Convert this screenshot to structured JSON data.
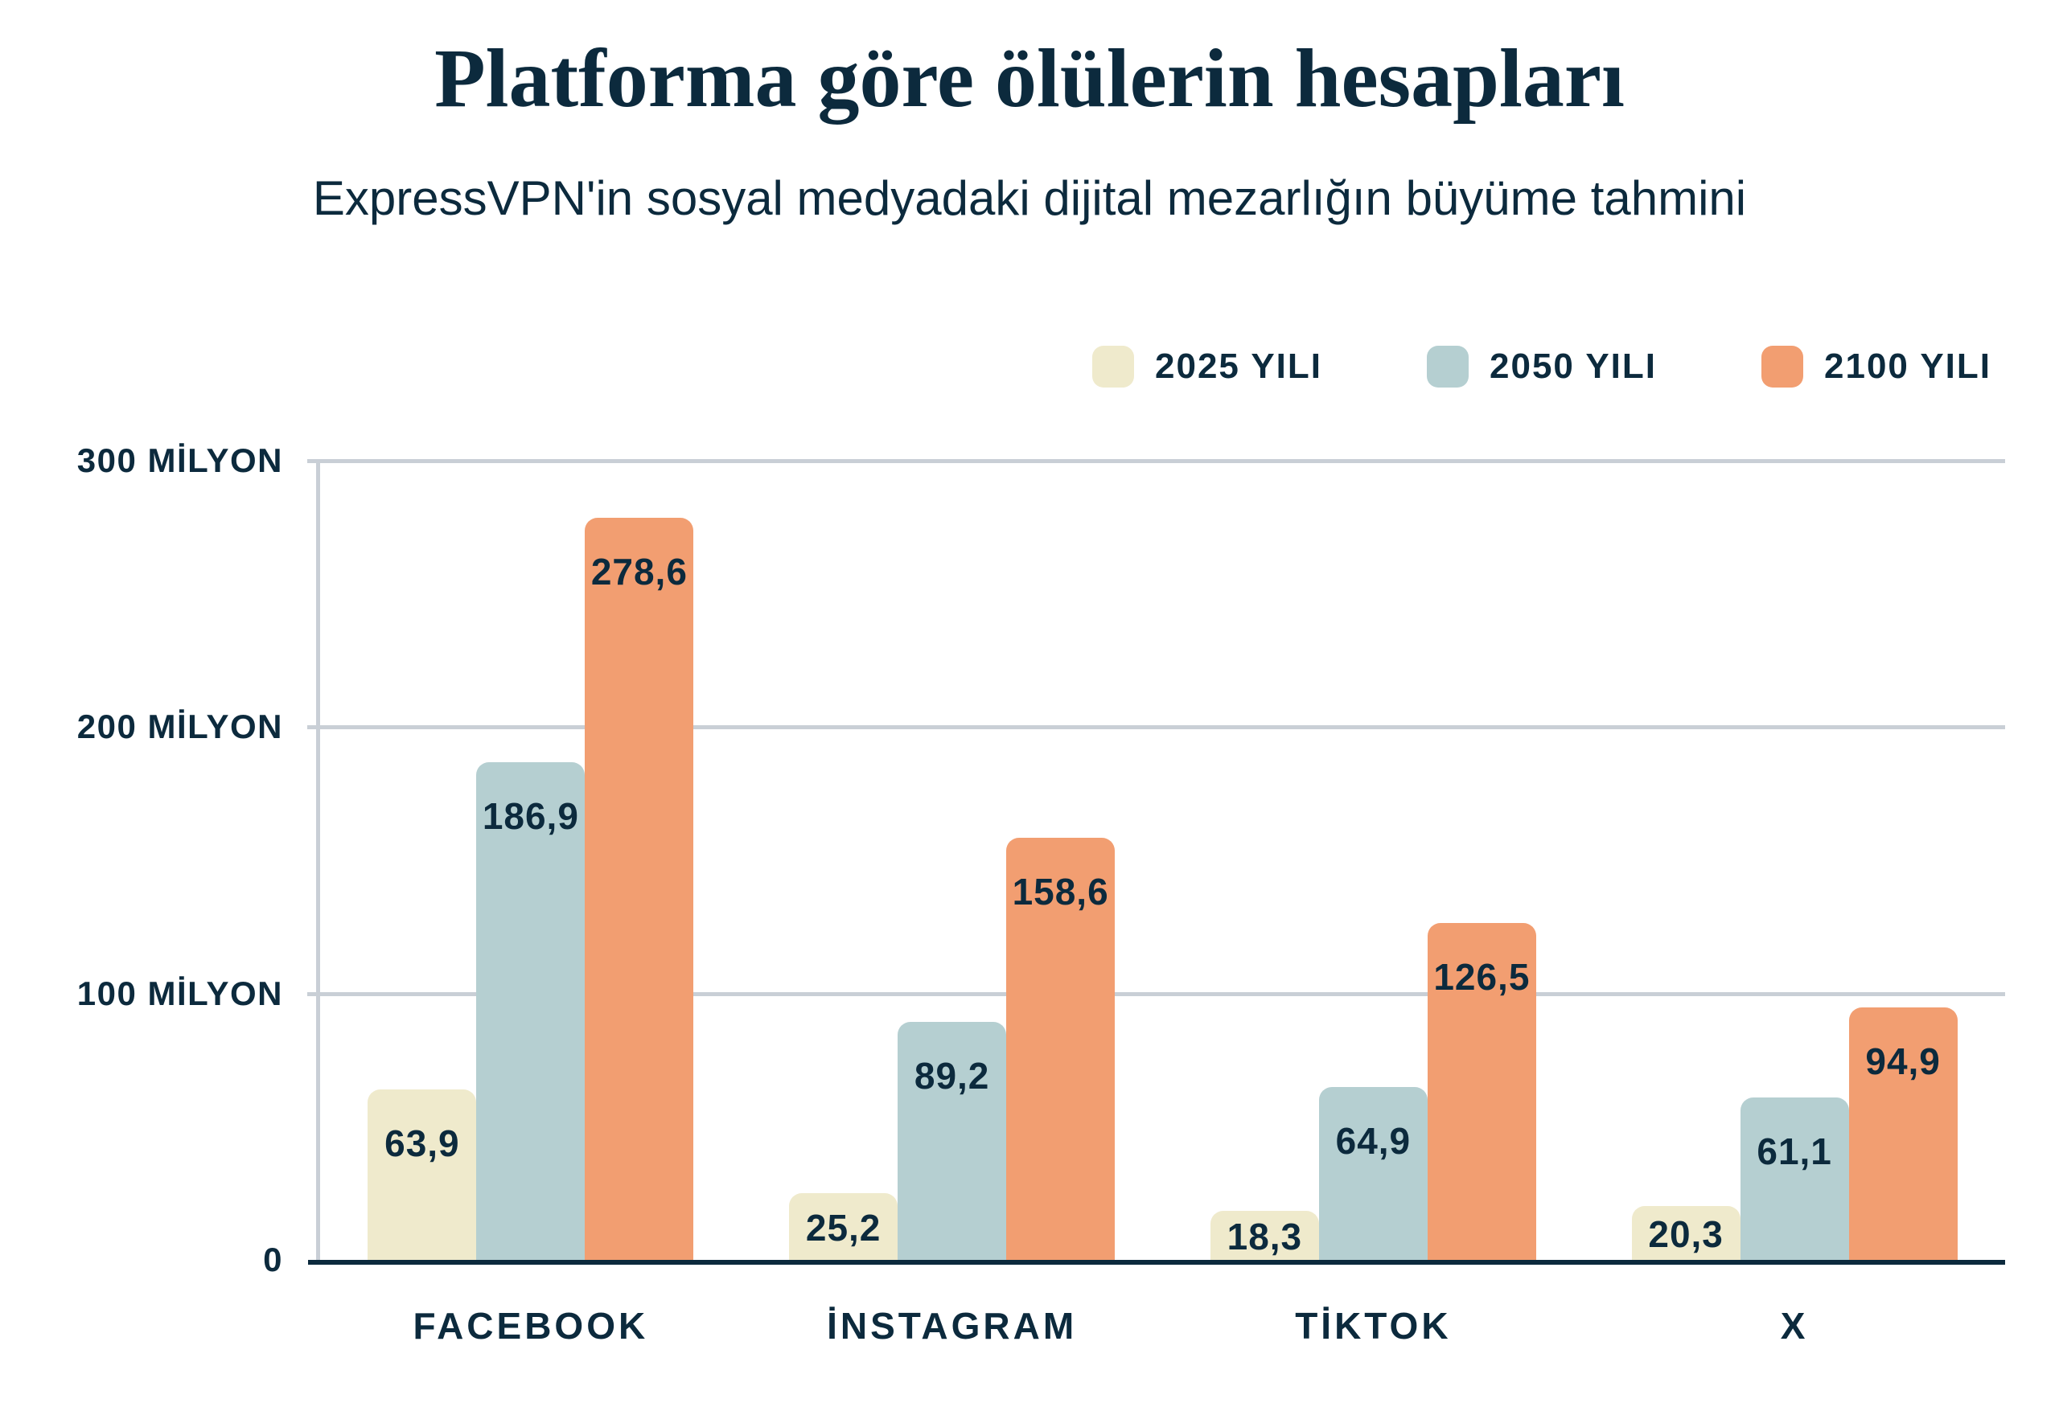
{
  "header": {
    "title": "Platforma göre ölülerin hesapları",
    "subtitle": "ExpressVPN'in sosyal medyadaki dijital mezarlığın büyüme tahmini"
  },
  "colors": {
    "text_navy": "#0c2a3d",
    "gridline_gray": "#c9cfd6",
    "background": "#ffffff",
    "series_2025": "#efeacc",
    "series_2050": "#b5cfd1",
    "series_2100": "#f29e71"
  },
  "chart_data": {
    "type": "bar",
    "title": "Platforma göre ölülerin hesapları",
    "subtitle": "ExpressVPN'in sosyal medyadaki dijital mezarlığın büyüme tahmini",
    "unit": "milyon hesap",
    "categories": [
      "FACEBOOK",
      "İNSTAGRAM",
      "TİKTOK",
      "X"
    ],
    "series": [
      {
        "name": "2025 YILI",
        "color": "#efeacc",
        "values": [
          63.9,
          25.2,
          18.3,
          20.3
        ]
      },
      {
        "name": "2050 YILI",
        "color": "#b5cfd1",
        "values": [
          186.9,
          89.2,
          64.9,
          61.1
        ]
      },
      {
        "name": "2100 YILI",
        "color": "#f29e71",
        "values": [
          278.6,
          158.6,
          126.5,
          94.9
        ]
      }
    ],
    "y_ticks": [
      {
        "value": 300,
        "label": "300 MİLYON"
      },
      {
        "value": 200,
        "label": "200 MİLYON"
      },
      {
        "value": 100,
        "label": "100 MİLYON"
      },
      {
        "value": 0,
        "label": "0"
      }
    ],
    "ylim": [
      0,
      300
    ],
    "grid": true,
    "legend_position": "top-right",
    "decimal_separator": ",",
    "value_label_position": "inside-top"
  }
}
